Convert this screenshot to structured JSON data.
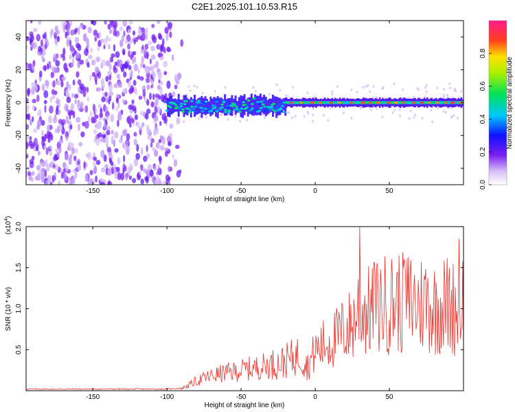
{
  "title": "C2E1.2025.101.10.53.R15",
  "colors": {
    "snr_line": "#e8302a",
    "noise_violet": "#7a1ff0",
    "noise_light": "#c9a6f5",
    "axis": "#000000"
  },
  "chart_data": [
    {
      "type": "heatmap",
      "xlabel": "Height of straight line (km)",
      "ylabel": "Frequency (Hz)",
      "xlim": [
        -195,
        100
      ],
      "ylim": [
        -50,
        50
      ],
      "xticks": [
        -150,
        -100,
        -50,
        0,
        50
      ],
      "yticks": [
        -40,
        -20,
        0,
        20,
        40
      ],
      "colorbar": {
        "label": "Normalized spectral amplitude",
        "range": [
          0,
          1
        ],
        "ticks": [
          "0.0",
          "0.2",
          "0.4",
          "0.6",
          "0.8"
        ],
        "tick_values": [
          0.0,
          0.2,
          0.4,
          0.6,
          0.8
        ],
        "colormap": "rainbow (white-violet-blue-cyan-green-yellow-red-magenta)"
      },
      "regions": [
        {
          "x_range": [
            -195,
            -90
          ],
          "description": "broadband noise",
          "freq_range": [
            -50,
            50
          ],
          "amplitude": 0.1
        },
        {
          "x_range": [
            -100,
            -20
          ],
          "description": "signal band",
          "freq_center": -2,
          "freq_halfwidth": 5,
          "amplitude": 0.35
        },
        {
          "x_range": [
            -20,
            100
          ],
          "description": "narrow signal band",
          "freq_center": 0,
          "freq_halfwidth": 2.5,
          "amplitude": 0.8
        }
      ]
    },
    {
      "type": "line",
      "xlabel": "Height of straight line (km)",
      "ylabel": "SNR (10 * v/v)",
      "yscale_label": "(x10^4)",
      "xlim": [
        -195,
        100
      ],
      "ylim": [
        0,
        2.0
      ],
      "xticks": [
        -150,
        -100,
        -50,
        0,
        50
      ],
      "yticks": [
        0.5,
        1.0,
        1.5,
        2.0
      ],
      "ytick_labels": [
        "0.5",
        "1.0",
        "1.5",
        "2.0"
      ],
      "series": [
        {
          "color": "#e8302a",
          "x": [
            -195,
            -180,
            -160,
            -140,
            -120,
            -100,
            -90,
            -85,
            -80,
            -75,
            -70,
            -65,
            -60,
            -55,
            -50,
            -45,
            -40,
            -35,
            -30,
            -25,
            -20,
            -15,
            -10,
            -5,
            0,
            5,
            10,
            15,
            20,
            25,
            30,
            35,
            40,
            45,
            50,
            55,
            60,
            65,
            70,
            75,
            80,
            85,
            90,
            95,
            100
          ],
          "y": [
            0.02,
            0.02,
            0.02,
            0.02,
            0.02,
            0.02,
            0.03,
            0.07,
            0.12,
            0.15,
            0.18,
            0.2,
            0.22,
            0.23,
            0.25,
            0.27,
            0.28,
            0.3,
            0.32,
            0.33,
            0.36,
            0.4,
            0.44,
            0.3,
            0.48,
            0.55,
            0.6,
            0.65,
            0.75,
            0.8,
            1.05,
            0.95,
            1.0,
            1.05,
            1.05,
            1.1,
            1.05,
            1.1,
            1.05,
            1.1,
            1.0,
            1.05,
            1.05,
            1.0,
            1.1
          ],
          "peaks": [
            [
              30,
              2.0
            ],
            [
              40,
              1.55
            ],
            [
              60,
              1.6
            ],
            [
              97,
              1.85
            ]
          ]
        }
      ]
    }
  ]
}
